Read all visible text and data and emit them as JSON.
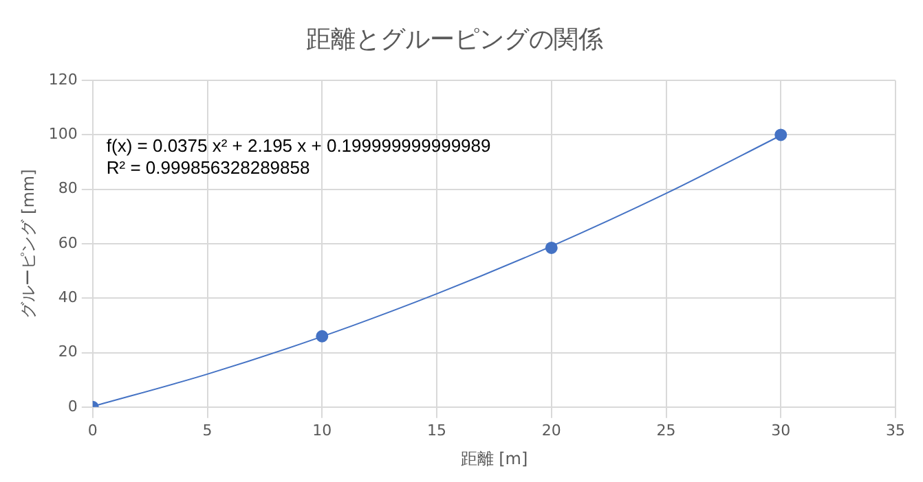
{
  "chart_data": {
    "type": "scatter",
    "title": "距離とグルーピングの関係",
    "xlabel": "距離 [m]",
    "ylabel": "グルーピング [mm]",
    "xlim": [
      0,
      35
    ],
    "xticks": [
      0,
      5,
      10,
      15,
      20,
      25,
      30,
      35
    ],
    "ylim": [
      0,
      120
    ],
    "yticks": [
      0,
      20,
      40,
      60,
      80,
      100,
      120
    ],
    "grid": true,
    "marker": "circle",
    "series": [
      {
        "type": "scatter",
        "color": "#4472c4",
        "x": [
          0,
          10,
          20,
          30
        ],
        "values": [
          0,
          26,
          58.5,
          100
        ]
      },
      {
        "type": "line",
        "color": "#4472c4",
        "marker": "none",
        "x": [
          0,
          5,
          10,
          15,
          20,
          25,
          30
        ],
        "values": [
          0.2,
          12.1,
          25.9,
          41.6,
          59.1,
          78.5,
          99.8
        ]
      }
    ],
    "annotations": [
      "f(x) = 0.0375 x² + 2.195 x + 0.199999999999989",
      "R² = 0.999856328289858"
    ]
  }
}
